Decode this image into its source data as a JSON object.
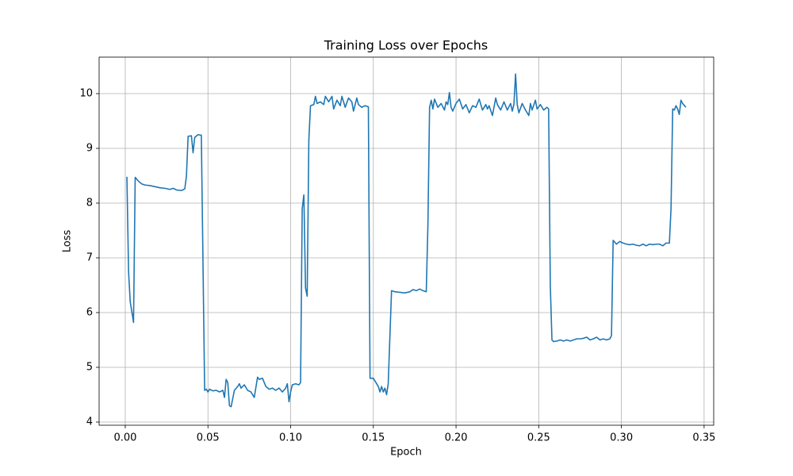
{
  "chart_data": {
    "type": "line",
    "title": "Training Loss over Epochs",
    "x_label": "Epoch",
    "y_label": "Loss",
    "x": [
      0.001,
      0.002,
      0.003,
      0.005,
      0.006,
      0.008,
      0.01,
      0.012,
      0.015,
      0.018,
      0.021,
      0.024,
      0.027,
      0.029,
      0.031,
      0.034,
      0.036,
      0.037,
      0.038,
      0.04,
      0.041,
      0.042,
      0.044,
      0.046,
      0.048,
      0.049,
      0.05,
      0.051,
      0.053,
      0.055,
      0.057,
      0.059,
      0.06,
      0.061,
      0.062,
      0.063,
      0.064,
      0.066,
      0.068,
      0.069,
      0.07,
      0.072,
      0.074,
      0.076,
      0.078,
      0.08,
      0.081,
      0.083,
      0.085,
      0.087,
      0.089,
      0.091,
      0.093,
      0.095,
      0.097,
      0.098,
      0.099,
      0.1,
      0.101,
      0.103,
      0.105,
      0.106,
      0.107,
      0.108,
      0.109,
      0.11,
      0.111,
      0.112,
      0.114,
      0.115,
      0.116,
      0.118,
      0.12,
      0.121,
      0.123,
      0.125,
      0.126,
      0.128,
      0.13,
      0.131,
      0.133,
      0.135,
      0.137,
      0.138,
      0.14,
      0.141,
      0.143,
      0.145,
      0.147,
      0.148,
      0.15,
      0.152,
      0.153,
      0.154,
      0.155,
      0.156,
      0.157,
      0.158,
      0.159,
      0.161,
      0.163,
      0.166,
      0.169,
      0.172,
      0.174,
      0.176,
      0.178,
      0.18,
      0.182,
      0.183,
      0.184,
      0.185,
      0.186,
      0.187,
      0.189,
      0.191,
      0.193,
      0.194,
      0.195,
      0.196,
      0.197,
      0.198,
      0.2,
      0.202,
      0.204,
      0.206,
      0.208,
      0.21,
      0.212,
      0.214,
      0.216,
      0.218,
      0.219,
      0.22,
      0.222,
      0.224,
      0.225,
      0.227,
      0.229,
      0.231,
      0.233,
      0.234,
      0.235,
      0.236,
      0.237,
      0.238,
      0.24,
      0.242,
      0.244,
      0.245,
      0.246,
      0.248,
      0.249,
      0.251,
      0.253,
      0.255,
      0.256,
      0.257,
      0.258,
      0.259,
      0.261,
      0.263,
      0.265,
      0.267,
      0.269,
      0.271,
      0.273,
      0.275,
      0.277,
      0.279,
      0.281,
      0.283,
      0.285,
      0.287,
      0.289,
      0.291,
      0.293,
      0.294,
      0.295,
      0.297,
      0.299,
      0.301,
      0.303,
      0.305,
      0.307,
      0.309,
      0.311,
      0.313,
      0.315,
      0.317,
      0.319,
      0.321,
      0.323,
      0.325,
      0.327,
      0.329,
      0.33,
      0.331,
      0.332,
      0.333,
      0.334,
      0.335,
      0.336,
      0.337,
      0.339
    ],
    "values": [
      8.48,
      6.75,
      6.2,
      5.82,
      8.47,
      8.4,
      8.35,
      8.33,
      8.32,
      8.3,
      8.28,
      8.27,
      8.25,
      8.27,
      8.24,
      8.23,
      8.26,
      8.5,
      9.22,
      9.23,
      8.92,
      9.2,
      9.25,
      9.24,
      4.58,
      4.6,
      4.55,
      4.6,
      4.57,
      4.58,
      4.55,
      4.58,
      4.45,
      4.78,
      4.72,
      4.3,
      4.28,
      4.58,
      4.65,
      4.7,
      4.62,
      4.68,
      4.58,
      4.55,
      4.45,
      4.82,
      4.78,
      4.8,
      4.65,
      4.6,
      4.62,
      4.58,
      4.62,
      4.55,
      4.62,
      4.7,
      4.37,
      4.55,
      4.68,
      4.7,
      4.68,
      4.72,
      7.9,
      8.15,
      6.45,
      6.3,
      9.15,
      9.78,
      9.8,
      9.95,
      9.82,
      9.85,
      9.8,
      9.95,
      9.85,
      9.95,
      9.72,
      9.88,
      9.78,
      9.95,
      9.75,
      9.92,
      9.85,
      9.68,
      9.92,
      9.8,
      9.75,
      9.78,
      9.76,
      4.8,
      4.8,
      4.7,
      4.65,
      4.55,
      4.65,
      4.55,
      4.62,
      4.5,
      4.7,
      6.4,
      6.38,
      6.37,
      6.36,
      6.38,
      6.42,
      6.4,
      6.43,
      6.4,
      6.38,
      7.6,
      9.75,
      9.88,
      9.72,
      9.9,
      9.75,
      9.82,
      9.7,
      9.85,
      9.8,
      10.02,
      9.75,
      9.68,
      9.82,
      9.9,
      9.72,
      9.8,
      9.65,
      9.78,
      9.75,
      9.9,
      9.7,
      9.8,
      9.72,
      9.78,
      9.6,
      9.92,
      9.8,
      9.7,
      9.85,
      9.7,
      9.82,
      9.68,
      9.8,
      10.36,
      9.8,
      9.65,
      9.82,
      9.7,
      9.6,
      9.82,
      9.7,
      9.88,
      9.72,
      9.8,
      9.7,
      9.75,
      9.72,
      6.5,
      5.5,
      5.47,
      5.48,
      5.5,
      5.48,
      5.5,
      5.48,
      5.5,
      5.52,
      5.52,
      5.53,
      5.55,
      5.5,
      5.52,
      5.55,
      5.5,
      5.52,
      5.5,
      5.52,
      5.58,
      7.32,
      7.25,
      7.3,
      7.27,
      7.25,
      7.24,
      7.25,
      7.23,
      7.22,
      7.25,
      7.22,
      7.25,
      7.24,
      7.25,
      7.25,
      7.22,
      7.27,
      7.27,
      7.9,
      9.72,
      9.7,
      9.78,
      9.72,
      9.62,
      9.88,
      9.82,
      9.75
    ],
    "color": "#1f77b4",
    "xlim": [
      -0.0158,
      0.3558
    ],
    "ylim": [
      3.942,
      10.667
    ],
    "xticks": [
      {
        "value": 0,
        "label": "0.00"
      },
      0.05,
      {
        "value": 0.1,
        "label": "0.10"
      },
      0.15,
      {
        "value": 0.2,
        "label": "0.20"
      },
      0.25,
      {
        "value": 0.3,
        "label": "0.30"
      },
      0.35
    ],
    "yticks": [
      4,
      5,
      6,
      7,
      8,
      9,
      10
    ],
    "grid": true
  }
}
